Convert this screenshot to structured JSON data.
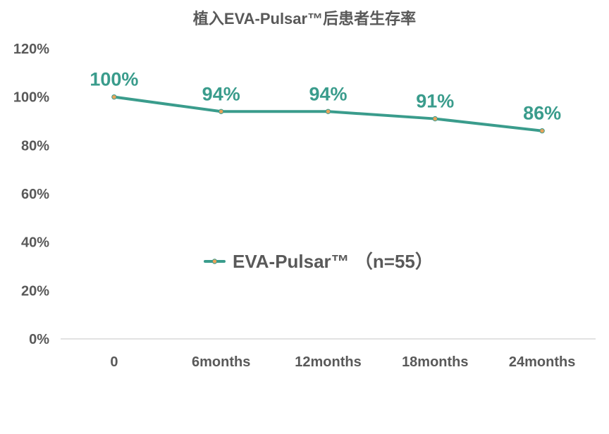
{
  "chart_data": {
    "type": "line",
    "title": "植入EVA-Pulsar™后患者生存率",
    "xlabel": "",
    "ylabel": "",
    "categories": [
      "0",
      "6months",
      "12months",
      "18months",
      "24months"
    ],
    "y_ticks": [
      "0%",
      "20%",
      "40%",
      "60%",
      "80%",
      "100%",
      "120%"
    ],
    "ylim": [
      0,
      120
    ],
    "grid": false,
    "legend_position": "center",
    "series": [
      {
        "name": "EVA-Pulsar™ （n=55）",
        "values": [
          100,
          94,
          94,
          91,
          86
        ],
        "labels": [
          "100%",
          "94%",
          "94%",
          "91%",
          "86%"
        ],
        "color": "#3A9C8C",
        "marker_color": "#E8A35A"
      }
    ]
  }
}
